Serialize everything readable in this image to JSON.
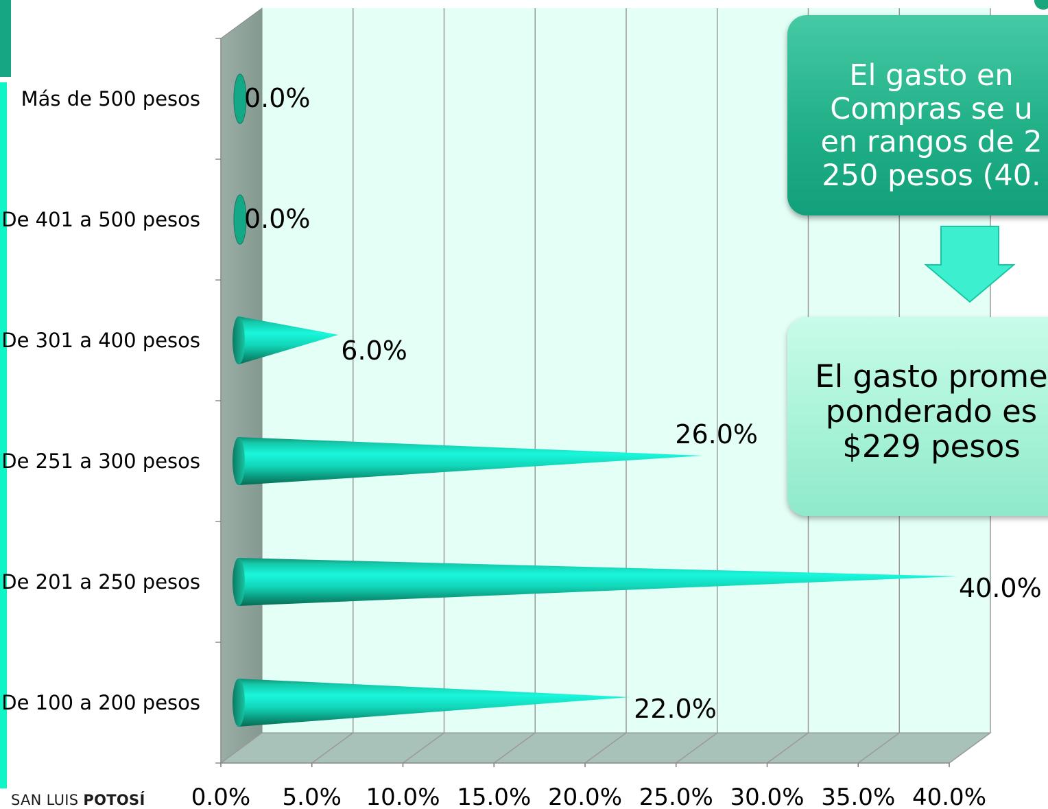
{
  "chart_data": {
    "type": "bar",
    "orientation": "horizontal",
    "categories": [
      "De 100 a 200 pesos",
      "De 201 a 250 pesos",
      "De 251 a 300 pesos",
      "De 301 a 400 pesos",
      "De 401 a 500 pesos",
      "Más de 500 pesos"
    ],
    "values": [
      22.0,
      40.0,
      26.0,
      6.0,
      0.0,
      0.0
    ],
    "value_labels": [
      "22.0%",
      "40.0%",
      "26.0%",
      "6.0%",
      "0.0%",
      "0.0%"
    ],
    "xlim": [
      0,
      40
    ],
    "x_ticks": [
      "0.0%",
      "5.0%",
      "10.0%",
      "15.0%",
      "20.0%",
      "25.0%",
      "30.0%",
      "35.0%",
      "40.0%"
    ],
    "grid": true,
    "bar_shape": "cone",
    "title": "",
    "xlabel": "",
    "ylabel": ""
  },
  "colors": {
    "bar": "#19f0d2",
    "bar_dark": "#0a8a6a",
    "plot_bg": "#e4fff6",
    "side_wall": "#8ea39b",
    "floor": "#a9c2b9",
    "grid": "#999999",
    "callout_top": "#1fae86",
    "callout_bottom": "#a8f3d8"
  },
  "callouts": {
    "top_lines": [
      "El gasto en",
      "Compras se u",
      "en rangos de 2",
      "250 pesos (40."
    ],
    "bottom_lines": [
      "El gasto prome",
      "ponderado es",
      "$229 pesos"
    ]
  },
  "footer": {
    "brand_part1": "SAN LUIS ",
    "brand_part2": "POTOSÍ"
  }
}
